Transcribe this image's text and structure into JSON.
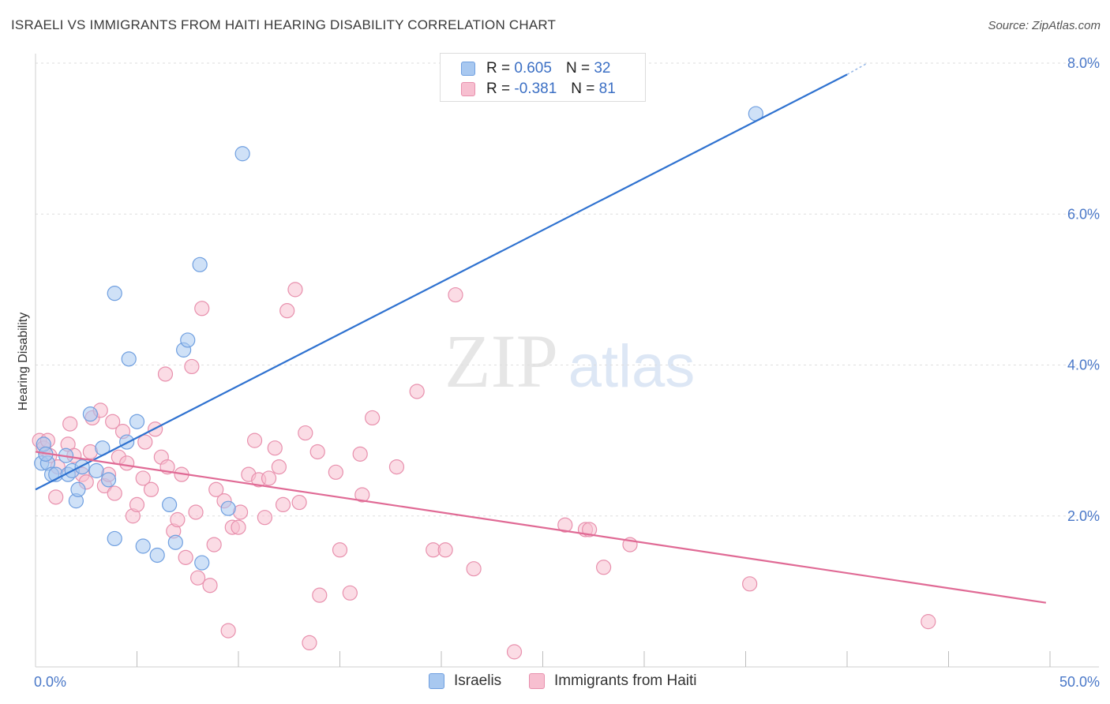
{
  "header": {
    "title": "ISRAELI VS IMMIGRANTS FROM HAITI HEARING DISABILITY CORRELATION CHART",
    "source": "Source: ZipAtlas.com"
  },
  "watermark": {
    "zip": "ZIP",
    "atlas": "atlas"
  },
  "legend": {
    "rows": [
      {
        "r_label": "R =",
        "r_value": "0.605",
        "n_label": "N =",
        "n_value": "32",
        "color": "#a8c8f0",
        "border": "#6f9fe0"
      },
      {
        "r_label": "R =",
        "r_value": "-0.381",
        "n_label": "N =",
        "n_value": "81",
        "color": "#f7bfd0",
        "border": "#e890ad"
      }
    ]
  },
  "bottom_legend": {
    "items": [
      {
        "label": "Israelis",
        "color": "#a8c8f0",
        "border": "#6f9fe0"
      },
      {
        "label": "Immigrants from Haiti",
        "color": "#f7bfd0",
        "border": "#e890ad"
      }
    ]
  },
  "chart_data": {
    "type": "scatter",
    "title": "ISRAELI VS IMMIGRANTS FROM HAITI HEARING DISABILITY CORRELATION CHART",
    "xlabel": "",
    "ylabel": "Hearing Disability",
    "xlim": [
      0,
      50
    ],
    "ylim": [
      0,
      8.0
    ],
    "x_ticks": [
      "0.0%",
      "50.0%"
    ],
    "y_ticks": [
      {
        "value": 2.0,
        "label": "2.0%"
      },
      {
        "value": 4.0,
        "label": "4.0%"
      },
      {
        "value": 6.0,
        "label": "6.0%"
      },
      {
        "value": 8.0,
        "label": "8.0%"
      }
    ],
    "grid": "horizontal dashed",
    "legend_placement": "top-center",
    "series": [
      {
        "name": "Israelis",
        "color": "#a8c8f0",
        "stroke": "#6f9fe0",
        "line_color": "#2f72d0",
        "trend": {
          "x0": 0.0,
          "y0": 2.35,
          "x1": 40.0,
          "y1": 7.85,
          "dash_to_x": 41.0,
          "dash_to_y": 8.0
        },
        "points": [
          [
            0.3,
            2.7
          ],
          [
            0.4,
            2.95
          ],
          [
            0.6,
            2.7
          ],
          [
            0.8,
            2.55
          ],
          [
            1.0,
            2.55
          ],
          [
            1.5,
            2.8
          ],
          [
            1.6,
            2.55
          ],
          [
            1.8,
            2.6
          ],
          [
            2.0,
            2.2
          ],
          [
            2.1,
            2.35
          ],
          [
            2.3,
            2.65
          ],
          [
            2.7,
            3.35
          ],
          [
            3.0,
            2.6
          ],
          [
            3.3,
            2.9
          ],
          [
            3.6,
            2.48
          ],
          [
            3.9,
            1.7
          ],
          [
            3.9,
            4.95
          ],
          [
            4.5,
            2.98
          ],
          [
            4.6,
            4.08
          ],
          [
            5.0,
            3.25
          ],
          [
            5.3,
            1.6
          ],
          [
            6.0,
            1.48
          ],
          [
            6.6,
            2.15
          ],
          [
            6.9,
            1.65
          ],
          [
            7.3,
            4.2
          ],
          [
            7.5,
            4.33
          ],
          [
            8.1,
            5.33
          ],
          [
            8.2,
            1.38
          ],
          [
            9.5,
            2.1
          ],
          [
            10.2,
            6.8
          ],
          [
            35.5,
            7.33
          ],
          [
            0.5,
            2.82
          ]
        ]
      },
      {
        "name": "Immigrants from Haiti",
        "color": "#f7bfd0",
        "stroke": "#e890ad",
        "line_color": "#e06a95",
        "trend": {
          "x0": 0.0,
          "y0": 2.85,
          "x1": 49.8,
          "y1": 0.85
        },
        "points": [
          [
            0.2,
            3.0
          ],
          [
            0.4,
            2.9
          ],
          [
            0.6,
            3.0
          ],
          [
            0.7,
            2.8
          ],
          [
            1.0,
            2.25
          ],
          [
            1.1,
            2.65
          ],
          [
            1.6,
            2.95
          ],
          [
            1.7,
            3.22
          ],
          [
            1.9,
            2.8
          ],
          [
            2.3,
            2.55
          ],
          [
            2.5,
            2.45
          ],
          [
            2.7,
            2.85
          ],
          [
            2.8,
            3.3
          ],
          [
            3.2,
            3.4
          ],
          [
            3.4,
            2.4
          ],
          [
            3.6,
            2.55
          ],
          [
            3.8,
            3.25
          ],
          [
            3.9,
            2.3
          ],
          [
            4.1,
            2.78
          ],
          [
            4.3,
            3.12
          ],
          [
            4.5,
            2.7
          ],
          [
            4.8,
            2.0
          ],
          [
            5.0,
            2.15
          ],
          [
            5.3,
            2.5
          ],
          [
            5.4,
            2.98
          ],
          [
            5.7,
            2.35
          ],
          [
            5.9,
            3.15
          ],
          [
            6.2,
            2.78
          ],
          [
            6.4,
            3.88
          ],
          [
            6.5,
            2.65
          ],
          [
            6.8,
            1.8
          ],
          [
            7.0,
            1.95
          ],
          [
            7.2,
            2.55
          ],
          [
            7.4,
            1.45
          ],
          [
            7.7,
            3.98
          ],
          [
            7.9,
            2.05
          ],
          [
            8.0,
            1.18
          ],
          [
            8.2,
            4.75
          ],
          [
            8.6,
            1.08
          ],
          [
            8.8,
            1.62
          ],
          [
            8.9,
            2.35
          ],
          [
            9.3,
            2.2
          ],
          [
            9.5,
            0.48
          ],
          [
            9.7,
            1.85
          ],
          [
            10.0,
            1.85
          ],
          [
            10.1,
            2.05
          ],
          [
            10.5,
            2.55
          ],
          [
            10.8,
            3.0
          ],
          [
            11.0,
            2.48
          ],
          [
            11.3,
            1.98
          ],
          [
            11.5,
            2.5
          ],
          [
            11.8,
            2.9
          ],
          [
            12.0,
            2.65
          ],
          [
            12.2,
            2.15
          ],
          [
            12.4,
            4.72
          ],
          [
            12.8,
            5.0
          ],
          [
            13.0,
            2.18
          ],
          [
            13.3,
            3.1
          ],
          [
            13.9,
            2.85
          ],
          [
            13.5,
            0.32
          ],
          [
            14.0,
            0.95
          ],
          [
            14.8,
            2.58
          ],
          [
            15.0,
            1.55
          ],
          [
            15.5,
            0.98
          ],
          [
            16.1,
            2.28
          ],
          [
            16.0,
            2.82
          ],
          [
            16.6,
            3.3
          ],
          [
            17.8,
            2.65
          ],
          [
            18.8,
            3.65
          ],
          [
            19.6,
            1.55
          ],
          [
            20.2,
            1.55
          ],
          [
            20.7,
            4.93
          ],
          [
            21.6,
            1.3
          ],
          [
            23.6,
            0.2
          ],
          [
            26.1,
            1.88
          ],
          [
            27.1,
            1.82
          ],
          [
            27.3,
            1.82
          ],
          [
            28.0,
            1.32
          ],
          [
            29.3,
            1.62
          ],
          [
            35.2,
            1.1
          ],
          [
            44.0,
            0.6
          ]
        ]
      }
    ]
  }
}
